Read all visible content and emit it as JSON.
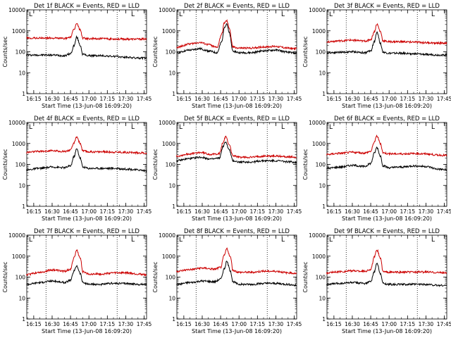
{
  "chart_data": [
    {
      "type": "line",
      "title": "Det 1f BLACK = Events, RED = LLD",
      "xlabel": "Start Time (13-Jun-08 16:09:20)",
      "ylabel": "Counts/sec",
      "y_scale": "log",
      "ylim": [
        1,
        10000
      ],
      "xlim": [
        "16:09:20",
        "17:47:00"
      ],
      "x_tick_labels": [
        "16:15",
        "16:30",
        "16:45",
        "17:00",
        "17:15",
        "17:30",
        "17:45"
      ],
      "y_tick_labels": [
        "1",
        "10",
        "100",
        "1000",
        "10000"
      ],
      "vertical_dotted_lines": [
        "16:25",
        "17:23"
      ],
      "corner_marks": [
        "L",
        "L"
      ],
      "grid": false,
      "series": [
        {
          "color": "#000000",
          "x": [
            "16:09",
            "16:20",
            "16:30",
            "16:40",
            "16:45",
            "16:48",
            "16:50",
            "16:53",
            "16:55",
            "17:00",
            "17:10",
            "17:20",
            "17:30",
            "17:40",
            "17:47"
          ],
          "values": [
            70,
            70,
            70,
            65,
            80,
            200,
            500,
            200,
            75,
            65,
            65,
            60,
            55,
            50,
            50
          ]
        },
        {
          "color": "#cc0000",
          "x": [
            "16:09",
            "16:20",
            "16:30",
            "16:40",
            "16:45",
            "16:48",
            "16:50",
            "16:53",
            "16:55",
            "17:00",
            "17:10",
            "17:20",
            "17:30",
            "17:40",
            "17:47"
          ],
          "values": [
            450,
            450,
            450,
            430,
            500,
            1200,
            2200,
            1100,
            450,
            420,
            420,
            410,
            400,
            400,
            400
          ]
        }
      ]
    },
    {
      "type": "line",
      "title": "Det 2f BLACK = Events, RED = LLD",
      "xlabel": "Start Time (13-Jun-08 16:09:20)",
      "ylabel": "Counts/sec",
      "y_scale": "log",
      "ylim": [
        1,
        10000
      ],
      "xlim": [
        "16:09:20",
        "17:47:00"
      ],
      "x_tick_labels": [
        "16:15",
        "16:30",
        "16:45",
        "17:00",
        "17:15",
        "17:30",
        "17:45"
      ],
      "y_tick_labels": [
        "1",
        "10",
        "100",
        "1000",
        "10000"
      ],
      "vertical_dotted_lines": [
        "16:25",
        "17:23"
      ],
      "corner_marks": [
        "L",
        "L"
      ],
      "grid": false,
      "series": [
        {
          "color": "#000000",
          "x": [
            "16:09",
            "16:20",
            "16:28",
            "16:35",
            "16:42",
            "16:46",
            "16:48",
            "16:50",
            "16:52",
            "16:55",
            "17:00",
            "17:10",
            "17:20",
            "17:30",
            "17:40",
            "17:47"
          ],
          "values": [
            90,
            120,
            140,
            110,
            90,
            300,
            1500,
            2200,
            800,
            110,
            90,
            90,
            110,
            120,
            95,
            85
          ]
        },
        {
          "color": "#cc0000",
          "x": [
            "16:09",
            "16:20",
            "16:28",
            "16:35",
            "16:42",
            "16:46",
            "16:48",
            "16:50",
            "16:52",
            "16:55",
            "17:00",
            "17:10",
            "17:20",
            "17:30",
            "17:40",
            "17:47"
          ],
          "values": [
            160,
            240,
            280,
            220,
            160,
            700,
            2400,
            3000,
            1400,
            170,
            150,
            150,
            170,
            180,
            150,
            140
          ]
        }
      ]
    },
    {
      "type": "line",
      "title": "Det 3f BLACK = Events, RED = LLD",
      "xlabel": "Start Time (13-Jun-08 16:09:20)",
      "ylabel": "Counts/sec",
      "y_scale": "log",
      "ylim": [
        1,
        10000
      ],
      "xlim": [
        "16:09:20",
        "17:47:00"
      ],
      "x_tick_labels": [
        "16:15",
        "16:30",
        "16:45",
        "17:00",
        "17:15",
        "17:30",
        "17:45"
      ],
      "y_tick_labels": [
        "1",
        "10",
        "100",
        "1000",
        "10000"
      ],
      "vertical_dotted_lines": [
        "16:25",
        "17:23"
      ],
      "corner_marks": [
        "L",
        "L"
      ],
      "grid": false,
      "series": [
        {
          "color": "#000000",
          "x": [
            "16:09",
            "16:20",
            "16:30",
            "16:40",
            "16:45",
            "16:48",
            "16:50",
            "16:53",
            "16:55",
            "17:00",
            "17:10",
            "17:20",
            "17:30",
            "17:40",
            "17:47"
          ],
          "values": [
            90,
            95,
            100,
            90,
            110,
            300,
            900,
            250,
            95,
            85,
            85,
            80,
            75,
            70,
            70
          ]
        },
        {
          "color": "#cc0000",
          "x": [
            "16:09",
            "16:20",
            "16:30",
            "16:40",
            "16:45",
            "16:48",
            "16:50",
            "16:53",
            "16:55",
            "17:00",
            "17:10",
            "17:20",
            "17:30",
            "17:40",
            "17:47"
          ],
          "values": [
            300,
            330,
            360,
            320,
            380,
            900,
            2100,
            900,
            330,
            300,
            300,
            290,
            270,
            260,
            260
          ]
        }
      ]
    },
    {
      "type": "line",
      "title": "Det 4f BLACK = Events, RED = LLD",
      "xlabel": "Start Time (13-Jun-08 16:09:20)",
      "ylabel": "Counts/sec",
      "y_scale": "log",
      "ylim": [
        1,
        10000
      ],
      "xlim": [
        "16:09:20",
        "17:47:00"
      ],
      "x_tick_labels": [
        "16:15",
        "16:30",
        "16:45",
        "17:00",
        "17:15",
        "17:30",
        "17:45"
      ],
      "y_tick_labels": [
        "1",
        "10",
        "100",
        "1000",
        "10000"
      ],
      "vertical_dotted_lines": [
        "16:25",
        "17:23"
      ],
      "corner_marks": [
        "L",
        "L"
      ],
      "grid": false,
      "series": [
        {
          "color": "#000000",
          "x": [
            "16:09",
            "16:20",
            "16:30",
            "16:40",
            "16:45",
            "16:48",
            "16:50",
            "16:53",
            "16:55",
            "17:00",
            "17:10",
            "17:20",
            "17:30",
            "17:40",
            "17:47"
          ],
          "values": [
            55,
            65,
            75,
            70,
            85,
            250,
            550,
            200,
            75,
            65,
            65,
            65,
            60,
            55,
            50
          ]
        },
        {
          "color": "#cc0000",
          "x": [
            "16:09",
            "16:20",
            "16:30",
            "16:40",
            "16:45",
            "16:48",
            "16:50",
            "16:53",
            "16:55",
            "17:00",
            "17:10",
            "17:20",
            "17:30",
            "17:40",
            "17:47"
          ],
          "values": [
            380,
            420,
            450,
            420,
            480,
            1100,
            2100,
            1000,
            440,
            400,
            400,
            390,
            380,
            360,
            350
          ]
        }
      ]
    },
    {
      "type": "line",
      "title": "Det 5f BLACK = Events, RED = LLD",
      "xlabel": "Start Time (13-Jun-08 16:09:20)",
      "ylabel": "Counts/sec",
      "y_scale": "log",
      "ylim": [
        1,
        10000
      ],
      "xlim": [
        "16:09:20",
        "17:47:00"
      ],
      "x_tick_labels": [
        "16:15",
        "16:30",
        "16:45",
        "17:00",
        "17:15",
        "17:30",
        "17:45"
      ],
      "y_tick_labels": [
        "1",
        "10",
        "100",
        "1000",
        "10000"
      ],
      "vertical_dotted_lines": [
        "16:25",
        "17:23"
      ],
      "corner_marks": [
        "L",
        "L"
      ],
      "grid": false,
      "series": [
        {
          "color": "#000000",
          "x": [
            "16:09",
            "16:20",
            "16:28",
            "16:38",
            "16:44",
            "16:47",
            "16:49",
            "16:52",
            "16:55",
            "17:00",
            "17:10",
            "17:20",
            "17:30",
            "17:40",
            "17:47"
          ],
          "values": [
            150,
            190,
            220,
            180,
            200,
            700,
            1200,
            500,
            150,
            130,
            130,
            150,
            150,
            135,
            125
          ]
        },
        {
          "color": "#cc0000",
          "x": [
            "16:09",
            "16:20",
            "16:28",
            "16:38",
            "16:44",
            "16:47",
            "16:49",
            "16:52",
            "16:55",
            "17:00",
            "17:10",
            "17:20",
            "17:30",
            "17:40",
            "17:47"
          ],
          "values": [
            250,
            320,
            370,
            300,
            330,
            1100,
            2100,
            900,
            260,
            220,
            220,
            250,
            250,
            230,
            220
          ]
        }
      ]
    },
    {
      "type": "line",
      "title": "Det 6f BLACK = Events, RED = LLD",
      "xlabel": "Start Time (13-Jun-08 16:09:20)",
      "ylabel": "Counts/sec",
      "y_scale": "log",
      "ylim": [
        1,
        10000
      ],
      "xlim": [
        "16:09:20",
        "17:47:00"
      ],
      "x_tick_labels": [
        "16:15",
        "16:30",
        "16:45",
        "17:00",
        "17:15",
        "17:30",
        "17:45"
      ],
      "y_tick_labels": [
        "1",
        "10",
        "100",
        "1000",
        "10000"
      ],
      "vertical_dotted_lines": [
        "16:25",
        "17:23"
      ],
      "corner_marks": [
        "L",
        "L"
      ],
      "grid": false,
      "series": [
        {
          "color": "#000000",
          "x": [
            "16:09",
            "16:20",
            "16:30",
            "16:40",
            "16:45",
            "16:48",
            "16:50",
            "16:53",
            "16:55",
            "17:00",
            "17:10",
            "17:20",
            "17:30",
            "17:40",
            "17:47"
          ],
          "values": [
            65,
            75,
            90,
            80,
            110,
            350,
            650,
            250,
            85,
            70,
            75,
            85,
            80,
            60,
            55
          ]
        },
        {
          "color": "#cc0000",
          "x": [
            "16:09",
            "16:20",
            "16:30",
            "16:40",
            "16:45",
            "16:48",
            "16:50",
            "16:53",
            "16:55",
            "17:00",
            "17:10",
            "17:20",
            "17:30",
            "17:40",
            "17:47"
          ],
          "values": [
            300,
            340,
            380,
            350,
            420,
            1200,
            2300,
            1000,
            360,
            320,
            320,
            330,
            320,
            280,
            270
          ]
        }
      ]
    },
    {
      "type": "line",
      "title": "Det 7f BLACK = Events, RED = LLD",
      "xlabel": "Start Time (13-Jun-08 16:09:20)",
      "ylabel": "Counts/sec",
      "y_scale": "log",
      "ylim": [
        1,
        10000
      ],
      "xlim": [
        "16:09:20",
        "17:47:00"
      ],
      "x_tick_labels": [
        "16:15",
        "16:30",
        "16:45",
        "17:00",
        "17:15",
        "17:30",
        "17:45"
      ],
      "y_tick_labels": [
        "1",
        "10",
        "100",
        "1000",
        "10000"
      ],
      "vertical_dotted_lines": [
        "16:25",
        "17:23"
      ],
      "corner_marks": [
        "L",
        "L"
      ],
      "grid": false,
      "series": [
        {
          "color": "#000000",
          "x": [
            "16:09",
            "16:20",
            "16:30",
            "16:40",
            "16:45",
            "16:48",
            "16:50",
            "16:53",
            "16:55",
            "17:00",
            "17:10",
            "17:20",
            "17:30",
            "17:40",
            "17:47"
          ],
          "values": [
            45,
            55,
            65,
            55,
            70,
            200,
            350,
            150,
            55,
            45,
            45,
            50,
            50,
            45,
            45
          ]
        },
        {
          "color": "#cc0000",
          "x": [
            "16:09",
            "16:20",
            "16:30",
            "16:40",
            "16:45",
            "16:48",
            "16:50",
            "16:53",
            "16:55",
            "17:00",
            "17:10",
            "17:20",
            "17:30",
            "17:40",
            "17:47"
          ],
          "values": [
            130,
            170,
            220,
            190,
            240,
            900,
            1900,
            800,
            180,
            140,
            140,
            160,
            160,
            140,
            130
          ]
        }
      ]
    },
    {
      "type": "line",
      "title": "Det 8f BLACK = Events, RED = LLD",
      "xlabel": "Start Time (13-Jun-08 16:09:20)",
      "ylabel": "Counts/sec",
      "y_scale": "log",
      "ylim": [
        1,
        10000
      ],
      "xlim": [
        "16:09:20",
        "17:47:00"
      ],
      "x_tick_labels": [
        "16:15",
        "16:30",
        "16:45",
        "17:00",
        "17:15",
        "17:30",
        "17:45"
      ],
      "y_tick_labels": [
        "1",
        "10",
        "100",
        "1000",
        "10000"
      ],
      "vertical_dotted_lines": [
        "16:25",
        "17:23"
      ],
      "corner_marks": [
        "L",
        "L"
      ],
      "grid": false,
      "series": [
        {
          "color": "#000000",
          "x": [
            "16:09",
            "16:20",
            "16:30",
            "16:40",
            "16:45",
            "16:48",
            "16:50",
            "16:53",
            "16:55",
            "17:00",
            "17:10",
            "17:20",
            "17:30",
            "17:40",
            "17:47"
          ],
          "values": [
            45,
            55,
            65,
            60,
            80,
            250,
            550,
            200,
            60,
            45,
            45,
            50,
            50,
            45,
            40
          ]
        },
        {
          "color": "#cc0000",
          "x": [
            "16:09",
            "16:20",
            "16:30",
            "16:40",
            "16:45",
            "16:48",
            "16:50",
            "16:53",
            "16:55",
            "17:00",
            "17:10",
            "17:20",
            "17:30",
            "17:40",
            "17:47"
          ],
          "values": [
            190,
            230,
            270,
            240,
            290,
            1100,
            2300,
            900,
            210,
            170,
            170,
            190,
            190,
            160,
            150
          ]
        }
      ]
    },
    {
      "type": "line",
      "title": "Det 9f BLACK = Events, RED = LLD",
      "xlabel": "Start Time (13-Jun-08 16:09:20)",
      "ylabel": "Counts/sec",
      "y_scale": "log",
      "ylim": [
        1,
        10000
      ],
      "xlim": [
        "16:09:20",
        "17:47:00"
      ],
      "x_tick_labels": [
        "16:15",
        "16:30",
        "16:45",
        "17:00",
        "17:15",
        "17:30",
        "17:45"
      ],
      "y_tick_labels": [
        "1",
        "10",
        "100",
        "1000",
        "10000"
      ],
      "vertical_dotted_lines": [
        "16:25",
        "17:23"
      ],
      "corner_marks": [
        "L",
        "L"
      ],
      "grid": false,
      "series": [
        {
          "color": "#000000",
          "x": [
            "16:09",
            "16:20",
            "16:30",
            "16:40",
            "16:45",
            "16:48",
            "16:50",
            "16:53",
            "16:55",
            "17:00",
            "17:10",
            "17:20",
            "17:30",
            "17:40",
            "17:47"
          ],
          "values": [
            45,
            50,
            55,
            50,
            60,
            180,
            450,
            150,
            50,
            45,
            45,
            45,
            45,
            40,
            40
          ]
        },
        {
          "color": "#cc0000",
          "x": [
            "16:09",
            "16:20",
            "16:30",
            "16:40",
            "16:45",
            "16:48",
            "16:50",
            "16:53",
            "16:55",
            "17:00",
            "17:10",
            "17:20",
            "17:30",
            "17:40",
            "17:47"
          ],
          "values": [
            160,
            180,
            200,
            190,
            230,
            900,
            2000,
            800,
            180,
            170,
            170,
            175,
            175,
            165,
            160
          ]
        }
      ]
    }
  ]
}
